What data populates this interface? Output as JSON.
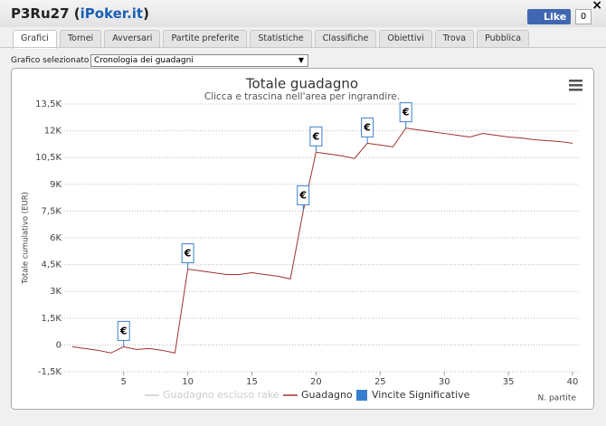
{
  "header": {
    "title_prefix": "P3Ru27 (",
    "site": "iPoker.it",
    "title_suffix": ")",
    "close": "×",
    "like": "Like",
    "like_count": "0"
  },
  "tabs": [
    "Grafici",
    "Tornei",
    "Avversari",
    "Partite preferite",
    "Statistiche",
    "Classifiche",
    "Obiettivi",
    "Trova",
    "Pubblica"
  ],
  "selector": {
    "label": "Grafico selezionato",
    "selected": "Cronologia dei guadagni"
  },
  "chart_data": {
    "type": "line",
    "title": "Totale guadagno",
    "subtitle": "Clicca e trascina nell'area per ingrandire.",
    "y_label": "Totale cumulativo (EUR)",
    "x_label": "N. partite",
    "x": [
      1,
      2,
      3,
      4,
      5,
      6,
      7,
      8,
      9,
      10,
      11,
      12,
      13,
      14,
      15,
      16,
      17,
      18,
      19,
      20,
      21,
      22,
      23,
      24,
      25,
      26,
      27,
      28,
      29,
      30,
      31,
      32,
      33,
      34,
      35,
      36,
      37,
      38,
      39,
      40
    ],
    "series": [
      {
        "name": "Guadagno escluso rake",
        "color": "#cccccc",
        "visible": false
      },
      {
        "name": "Guadagno",
        "color": "#a0302c",
        "values": [
          -100,
          -200,
          -300,
          -450,
          -100,
          -250,
          -200,
          -300,
          -450,
          4250,
          4150,
          4050,
          3950,
          3950,
          4050,
          3950,
          3850,
          3700,
          7500,
          10800,
          10700,
          10600,
          10450,
          11300,
          11200,
          11100,
          12150,
          12050,
          11950,
          11850,
          11750,
          11650,
          11850,
          11750,
          11650,
          11600,
          11500,
          11450,
          11400,
          11300
        ]
      },
      {
        "name": "Vincite Significative",
        "color": "#3a7fcf",
        "x": [
          5,
          10,
          19,
          20,
          24,
          27
        ],
        "labels": [
          "€",
          "€",
          "€",
          "€",
          "€",
          "€"
        ]
      }
    ],
    "xlim": [
      1,
      40
    ],
    "xticks": [
      5,
      10,
      15,
      20,
      25,
      30,
      35,
      40
    ],
    "ylim": [
      -1500,
      13500
    ],
    "yticks": [
      {
        "value": -1500,
        "label": "-1,5K"
      },
      0,
      {
        "value": 1500,
        "label": "1,5K"
      },
      {
        "value": 3000,
        "label": "3K"
      },
      {
        "value": 4500,
        "label": "4,5K"
      },
      {
        "value": 6000,
        "label": "6K"
      },
      {
        "value": 7500,
        "label": "7,5K"
      },
      {
        "value": 9000,
        "label": "9K"
      },
      {
        "value": 10500,
        "label": "10,5K"
      },
      {
        "value": 12000,
        "label": "12K"
      },
      {
        "value": 13500,
        "label": "13,5K"
      }
    ],
    "grid": true
  }
}
